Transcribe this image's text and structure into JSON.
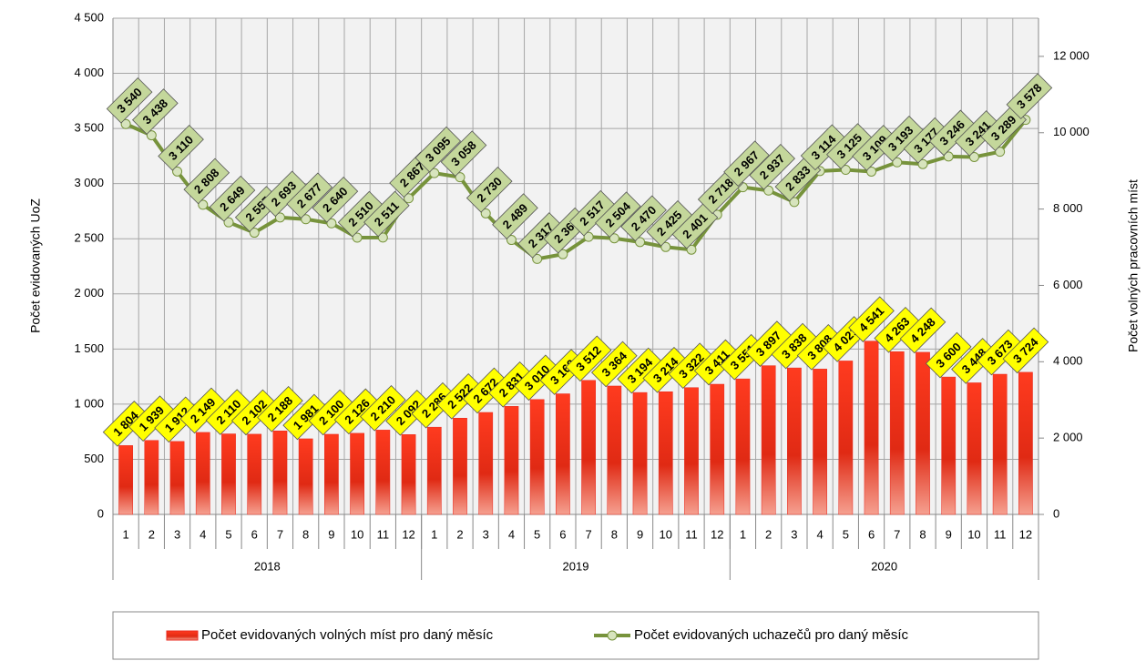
{
  "chart_data": {
    "type": "bar-line",
    "y_label": "Počet evidovaných UoZ",
    "y2_label": "Počet volných pracovních míst",
    "categories": [
      "1",
      "2",
      "3",
      "4",
      "5",
      "6",
      "7",
      "8",
      "9",
      "10",
      "11",
      "12",
      "1",
      "2",
      "3",
      "4",
      "5",
      "6",
      "7",
      "8",
      "9",
      "10",
      "11",
      "12",
      "1",
      "2",
      "3",
      "4",
      "5",
      "6",
      "7",
      "8",
      "9",
      "10",
      "11",
      "12"
    ],
    "x_groups": [
      "2018",
      "2019",
      "2020"
    ],
    "ylim": [
      0,
      4500
    ],
    "yticks": [
      0,
      500,
      {
        "value": 1000,
        "label": "1 000"
      },
      {
        "value": 1500,
        "label": "1 500"
      },
      {
        "value": 2000,
        "label": "2 000"
      },
      {
        "value": 2500,
        "label": "2 500"
      },
      {
        "value": 3000,
        "label": "3 000"
      },
      {
        "value": 3500,
        "label": "3 500"
      },
      {
        "value": 4000,
        "label": "4 000"
      },
      {
        "value": 4500,
        "label": "4 500"
      }
    ],
    "y2lim": [
      0,
      13000
    ],
    "y2ticks": [
      0,
      {
        "value": 2000,
        "label": "2 000"
      },
      {
        "value": 4000,
        "label": "4 000"
      },
      {
        "value": 6000,
        "label": "6 000"
      },
      {
        "value": 8000,
        "label": "8 000"
      },
      {
        "value": 10000,
        "label": "10 000"
      },
      {
        "value": 12000,
        "label": "12 000"
      }
    ],
    "grid": true,
    "series": [
      {
        "name": "Počet evidovaných volných míst pro daný měsíc",
        "type": "bar",
        "axis": "y2",
        "color": "#e8281c",
        "values": [
          1804,
          1939,
          1912,
          2149,
          2110,
          2102,
          2188,
          1981,
          2100,
          2126,
          2210,
          2092,
          2286,
          2522,
          2672,
          2831,
          3010,
          3160,
          3512,
          3364,
          3194,
          3214,
          3322,
          3411,
          3551,
          3897,
          3838,
          3808,
          4021,
          4541,
          4263,
          4248,
          3600,
          3448,
          3673,
          3724
        ],
        "value_labels": [
          "1 804",
          "1 939",
          "1 912",
          "2 149",
          "2 110",
          "2 102",
          "2 188",
          "1 981",
          "2 100",
          "2 126",
          "2 210",
          "2 092",
          "2 286",
          "2 522",
          "2 672",
          "2 831",
          "3 010",
          "3 160",
          "3 512",
          "3 364",
          "3 194",
          "3 214",
          "3 322",
          "3 411",
          "3 551",
          "3 897",
          "3 838",
          "3 808",
          "4 021",
          "4 541",
          "4 263",
          "4 248",
          "3 600",
          "3 448",
          "3 673",
          "3 724"
        ]
      },
      {
        "name": "Počet evidovaných uchazečů pro daný měsíc",
        "type": "line",
        "axis": "y",
        "color": "#77933c",
        "values": [
          3540,
          3438,
          3110,
          2808,
          2649,
          2555,
          2693,
          2677,
          2640,
          2510,
          2511,
          2867,
          3095,
          3058,
          2730,
          2489,
          2317,
          2360,
          2517,
          2504,
          2470,
          2425,
          2401,
          2718,
          2967,
          2937,
          2833,
          3114,
          3125,
          3109,
          3193,
          3177,
          3246,
          3241,
          3289,
          3578
        ],
        "value_labels": [
          "3 540",
          "3 438",
          "3 110",
          "2 808",
          "2 649",
          "2 555",
          "2 693",
          "2 677",
          "2 640",
          "2 510",
          "2 511",
          "2 867",
          "3 095",
          "3 058",
          "2 730",
          "2 489",
          "2 317",
          "2 360",
          "2 517",
          "2 504",
          "2 470",
          "2 425",
          "2 401",
          "2 718",
          "2 967",
          "2 937",
          "2 833",
          "3 114",
          "3 125",
          "3 109",
          "3 193",
          "3 177",
          "3 246",
          "3 241",
          "3 289",
          "3 578"
        ]
      }
    ]
  }
}
